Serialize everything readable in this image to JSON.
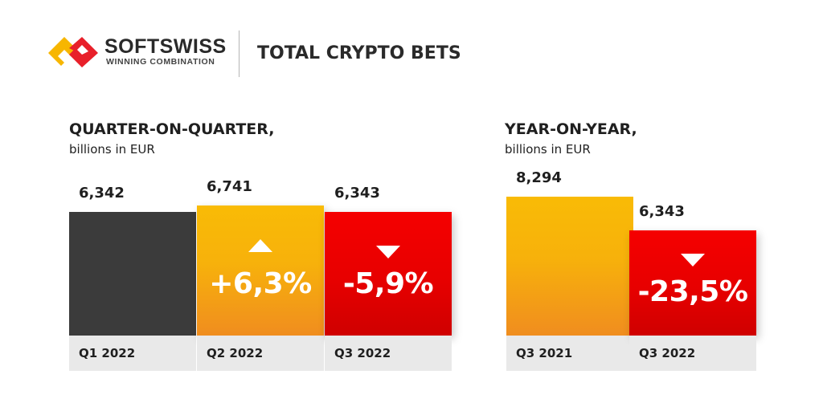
{
  "header": {
    "brand": "SOFTSWISS",
    "tagline": "WINNING COMBINATION",
    "title": "TOTAL CRYPTO BETS"
  },
  "colors": {
    "dark": "#3b3b3b",
    "orange": "#f7b10b",
    "red": "#e60000",
    "label_bg": "#e9e9e9",
    "logo_red": "#e8202a",
    "logo_yellow": "#f7b600"
  },
  "chart_data": [
    {
      "type": "bar",
      "title": "QUARTER-ON-QUARTER,",
      "subtitle": "billions in EUR",
      "categories": [
        "Q1 2022",
        "Q2 2022",
        "Q3 2022"
      ],
      "values": [
        6.342,
        6.741,
        6.343
      ],
      "value_labels": [
        "6,342",
        "6,741",
        "6,343"
      ],
      "bar_colors": [
        "dark",
        "orange",
        "red"
      ],
      "changes": [
        {
          "index": 1,
          "label": "+6,3%",
          "direction": "up"
        },
        {
          "index": 2,
          "label": "-5,9%",
          "direction": "down"
        }
      ],
      "xlabel": "",
      "ylabel": ""
    },
    {
      "type": "bar",
      "title": "YEAR-ON-YEAR,",
      "subtitle": "billions in EUR",
      "categories": [
        "Q3 2021",
        "Q3 2022"
      ],
      "values": [
        8.294,
        6.343
      ],
      "value_labels": [
        "8,294",
        "6,343"
      ],
      "bar_colors": [
        "orange",
        "red"
      ],
      "changes": [
        {
          "index": 1,
          "label": "-23,5%",
          "direction": "down"
        }
      ],
      "xlabel": "",
      "ylabel": ""
    }
  ]
}
